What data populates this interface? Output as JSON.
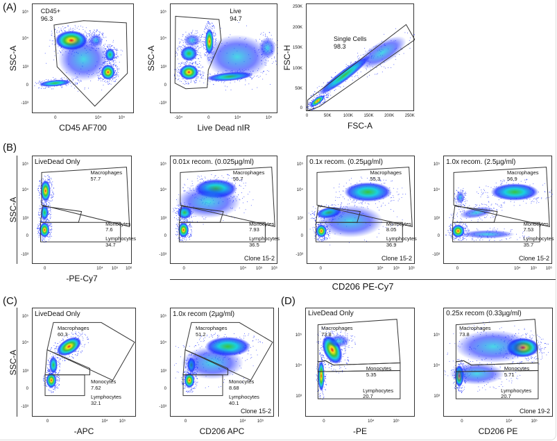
{
  "panel_letters": {
    "a": "(A)",
    "b": "(B)",
    "c": "(C)",
    "d": "(D)"
  },
  "shared_labels": {
    "b_xlabel": "CD206 PE-Cy7"
  },
  "colors": {
    "density_high": "#e8141a",
    "density_mid": "#f5e61c",
    "density_green": "#3cc23c",
    "density_cyan": "#1ad0e0",
    "density_low": "#1a2cff",
    "gate": "#333333"
  },
  "chart_data": [
    {
      "id": "A1",
      "type": "scatter",
      "subtype": "flow-density",
      "title": "CD45+",
      "value": "96.3",
      "xlabel": "CD45 AF700",
      "ylabel": "SSC-A",
      "xticks": [
        "0",
        "10⁴",
        "10⁵"
      ],
      "yticks": [
        "10⁵",
        "10⁴",
        "10³",
        "0",
        "-10³"
      ],
      "gates": []
    },
    {
      "id": "A2",
      "type": "scatter",
      "subtype": "flow-density",
      "title": "Live",
      "value": "94.7",
      "xlabel": "Live Dead nIR",
      "ylabel": "SSC-A",
      "xticks": [
        "-10⁴",
        "0",
        "10⁴",
        "10⁵"
      ],
      "yticks": [
        "10⁵",
        "10⁴",
        "10³",
        "0",
        "-10³"
      ],
      "gates": []
    },
    {
      "id": "A3",
      "type": "scatter",
      "subtype": "flow-density",
      "title": "Single Cells",
      "value": "98.3",
      "xlabel": "FSC-A",
      "ylabel": "FSC-H",
      "xticks": [
        "0",
        "50K",
        "100K",
        "150K",
        "200K",
        "250K"
      ],
      "yticks": [
        "250K",
        "200K",
        "150K",
        "100K",
        "50K",
        "0"
      ],
      "xlim": [
        0,
        262144
      ],
      "ylim": [
        0,
        262144
      ],
      "gates": []
    },
    {
      "id": "B1",
      "type": "scatter",
      "subtype": "flow-density",
      "title": "LiveDead Only",
      "xlabel": "-PE-Cy7",
      "ylabel": "SSC-A",
      "xticks": [
        "0",
        "10⁴",
        "10⁵",
        "10⁶"
      ],
      "yticks": [
        "10⁵",
        "10⁴",
        "10³",
        "0",
        "-10³"
      ],
      "gates": [
        {
          "name": "Macrophages",
          "percent": "57.7"
        },
        {
          "name": "Monocytes",
          "percent": "7.6"
        },
        {
          "name": "Lymphocytes",
          "percent": "34.7"
        }
      ]
    },
    {
      "id": "B2",
      "type": "scatter",
      "subtype": "flow-density",
      "title": "0.01x recom. (0.025µg/ml)",
      "clone": "Clone 15-2",
      "xticks": [
        "0",
        "10⁴",
        "10⁵",
        "10⁶"
      ],
      "yticks": [
        "10⁵",
        "10⁴",
        "10³",
        "0",
        "-10³"
      ],
      "gates": [
        {
          "name": "Macrophages",
          "percent": "55.7"
        },
        {
          "name": "Monocytes",
          "percent": "7.93"
        },
        {
          "name": "Lymphocytes",
          "percent": "36.5"
        }
      ]
    },
    {
      "id": "B3",
      "type": "scatter",
      "subtype": "flow-density",
      "title": "0.1x recom. (0.25µg/ml)",
      "clone": "Clone 15-2",
      "xticks": [
        "0",
        "10⁴",
        "10⁵",
        "10⁶"
      ],
      "yticks": [
        "10⁵",
        "10⁴",
        "10³",
        "0",
        "-10³"
      ],
      "gates": [
        {
          "name": "Macrophages",
          "percent": "55.3"
        },
        {
          "name": "Monocytes",
          "percent": "8.05"
        },
        {
          "name": "Lymphocytes",
          "percent": "36.9"
        }
      ]
    },
    {
      "id": "B4",
      "type": "scatter",
      "subtype": "flow-density",
      "title": "1.0x recom. (2.5µg/ml)",
      "clone": "Clone 15-2",
      "xticks": [
        "0",
        "10⁴",
        "10⁵",
        "10⁶"
      ],
      "yticks": [
        "10⁵",
        "10⁴",
        "10³",
        "0",
        "-10³"
      ],
      "gates": [
        {
          "name": "Macrophages",
          "percent": "56.9"
        },
        {
          "name": "Monocytes",
          "percent": "7.53"
        },
        {
          "name": "Lymphocytes",
          "percent": "35.7"
        }
      ]
    },
    {
      "id": "C1",
      "type": "scatter",
      "subtype": "flow-density",
      "title": "LiveDead Only",
      "xlabel": "-APC",
      "ylabel": "SSC-A",
      "xticks": [
        "0",
        "10⁴",
        "10⁵"
      ],
      "yticks": [
        "10⁵",
        "10⁴",
        "10³",
        "0",
        "-10³"
      ],
      "gates": [
        {
          "name": "Macrophages",
          "percent": "60.3"
        },
        {
          "name": "Monocytes",
          "percent": "7.62"
        },
        {
          "name": "Lymphocytes",
          "percent": "32.1"
        }
      ]
    },
    {
      "id": "C2",
      "type": "scatter",
      "subtype": "flow-density",
      "title": "1.0x recom (2µg/ml)",
      "clone": "Clone 15-2",
      "xlabel": "CD206 APC",
      "xticks": [
        "0",
        "10⁴",
        "10⁵"
      ],
      "yticks": [
        "10⁵",
        "10⁴",
        "10³",
        "0",
        "-10³"
      ],
      "gates": [
        {
          "name": "Macrophages",
          "percent": "51.2"
        },
        {
          "name": "Monocytes",
          "percent": "8.68"
        },
        {
          "name": "Lymphocytes",
          "percent": "40.1"
        }
      ]
    },
    {
      "id": "D1",
      "type": "scatter",
      "subtype": "flow-density",
      "title": "LiveDead Only",
      "xlabel": "-PE",
      "xticks": [
        "0",
        "10⁴",
        "10⁵"
      ],
      "yticks": [
        "10⁵",
        "10⁴",
        "10³"
      ],
      "gates": [
        {
          "name": "Macrophages",
          "percent": "73.8"
        },
        {
          "name": "Monocytes",
          "percent": "5.35"
        },
        {
          "name": "Lymphocytes",
          "percent": "20.7"
        }
      ]
    },
    {
      "id": "D2",
      "type": "scatter",
      "subtype": "flow-density",
      "title": "0.25x recom (0.33µg/ml)",
      "clone": "Clone 19-2",
      "xlabel": "CD206 PE",
      "xticks": [
        "0",
        "10⁴",
        "10⁵"
      ],
      "yticks": [
        "10⁵",
        "10⁴",
        "10³"
      ],
      "gates": [
        {
          "name": "Macrophages",
          "percent": "73.8"
        },
        {
          "name": "Monocytes",
          "percent": "5.71"
        },
        {
          "name": "Lymphocytes",
          "percent": "20.7"
        }
      ]
    }
  ]
}
